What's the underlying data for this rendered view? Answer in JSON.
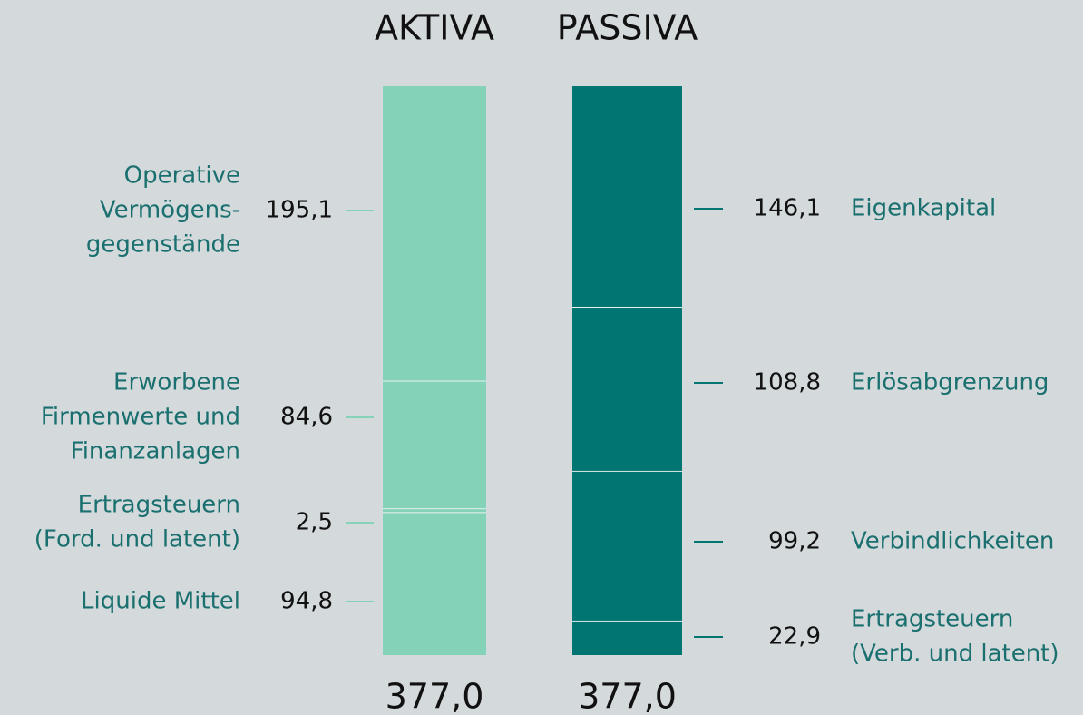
{
  "chart_data": {
    "type": "stacked-bar",
    "bars": [
      {
        "category": "AKTIVA",
        "color": "#84d3b9",
        "total": 377.0,
        "total_label": "377,0",
        "segments": [
          {
            "name": [
              "Liquide Mittel"
            ],
            "value": 94.8,
            "value_label": "94,8"
          },
          {
            "name": [
              "Ertragsteuern",
              "(Ford. und latent)"
            ],
            "value": 2.5,
            "value_label": "2,5"
          },
          {
            "name": [
              "Erworbene",
              "Firmenwerte und",
              "Finanzanlagen"
            ],
            "value": 84.6,
            "value_label": "84,6"
          },
          {
            "name": [
              "Operative",
              "Vermögens-",
              "gegenstände"
            ],
            "value": 195.1,
            "value_label": "195,1"
          }
        ]
      },
      {
        "category": "PASSIVA",
        "color": "#007571",
        "total": 377.0,
        "total_label": "377,0",
        "segments": [
          {
            "name": [
              "Ertragsteuern",
              "(Verb. und latent)"
            ],
            "value": 22.9,
            "value_label": "22,9"
          },
          {
            "name": [
              "Verbindlichkeiten"
            ],
            "value": 99.2,
            "value_label": "99,2"
          },
          {
            "name": [
              "Erlösabgrenzung"
            ],
            "value": 108.8,
            "value_label": "108,8"
          },
          {
            "name": [
              "Eigenkapital"
            ],
            "value": 146.1,
            "value_label": "146,1"
          }
        ]
      }
    ]
  }
}
